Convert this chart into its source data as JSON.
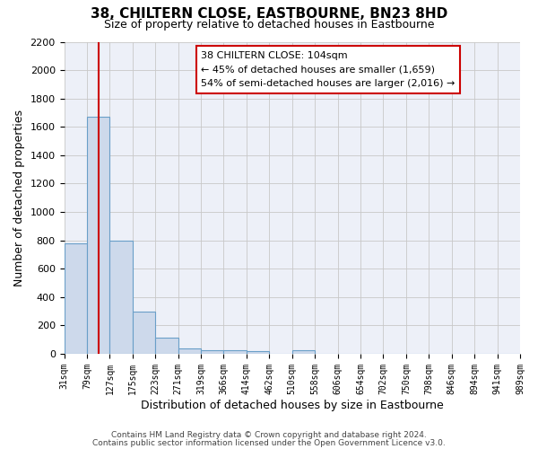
{
  "title": "38, CHILTERN CLOSE, EASTBOURNE, BN23 8HD",
  "subtitle": "Size of property relative to detached houses in Eastbourne",
  "xlabel": "Distribution of detached houses by size in Eastbourne",
  "ylabel": "Number of detached properties",
  "bins": [
    "31sqm",
    "79sqm",
    "127sqm",
    "175sqm",
    "223sqm",
    "271sqm",
    "319sqm",
    "366sqm",
    "414sqm",
    "462sqm",
    "510sqm",
    "558sqm",
    "606sqm",
    "654sqm",
    "702sqm",
    "750sqm",
    "798sqm",
    "846sqm",
    "894sqm",
    "941sqm",
    "989sqm"
  ],
  "values": [
    780,
    1670,
    795,
    295,
    115,
    35,
    28,
    22,
    20,
    0,
    25,
    0,
    0,
    0,
    0,
    0,
    0,
    0,
    0,
    0
  ],
  "bar_color": "#cdd9eb",
  "bar_edge_color": "#6a9fc8",
  "red_line_color": "#cc0000",
  "ylim": [
    0,
    2200
  ],
  "yticks": [
    0,
    200,
    400,
    600,
    800,
    1000,
    1200,
    1400,
    1600,
    1800,
    2000,
    2200
  ],
  "property_label": "38 CHILTERN CLOSE: 104sqm",
  "annotation_line1": "← 45% of detached houses are smaller (1,659)",
  "annotation_line2": "54% of semi-detached houses are larger (2,016) →",
  "footer_line1": "Contains HM Land Registry data © Crown copyright and database right 2024.",
  "footer_line2": "Contains public sector information licensed under the Open Government Licence v3.0.",
  "fig_background": "#ffffff",
  "plot_background": "#edf0f8",
  "grid_color": "#c8c8c8",
  "annotation_box_color": "#ffffff",
  "annotation_box_edge": "#cc0000"
}
